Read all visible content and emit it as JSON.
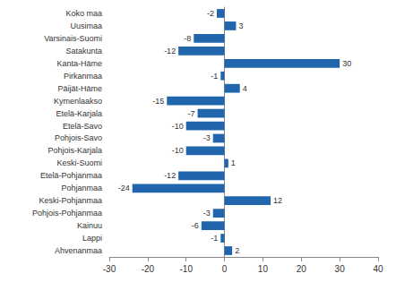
{
  "chart_data": {
    "type": "bar",
    "orientation": "horizontal",
    "categories": [
      "Koko maa",
      "Uusimaa",
      "Varsinais-Suomi",
      "Satakunta",
      "Kanta-Häme",
      "Pirkanmaa",
      "Päijät-Häme",
      "Kymenlaakso",
      "Etelä-Karjala",
      "Etelä-Savo",
      "Pohjois-Savo",
      "Pohjois-Karjala",
      "Keski-Suomi",
      "Etelä-Pohjanmaa",
      "Pohjanmaa",
      "Keski-Pohjanmaa",
      "Pohjois-Pohjanmaa",
      "Kainuu",
      "Lappi",
      "Ahvenanmaa"
    ],
    "values": [
      -2,
      3,
      -8,
      -12,
      30,
      -1,
      4,
      -15,
      -7,
      -10,
      -3,
      -10,
      1,
      -12,
      -24,
      12,
      -3,
      -6,
      -1,
      2
    ],
    "color": "#2166ac",
    "xlim": [
      -30,
      40
    ],
    "xticks": [
      -30,
      -20,
      -10,
      0,
      10,
      20,
      30,
      40
    ],
    "grid": false,
    "data_labels": true
  }
}
